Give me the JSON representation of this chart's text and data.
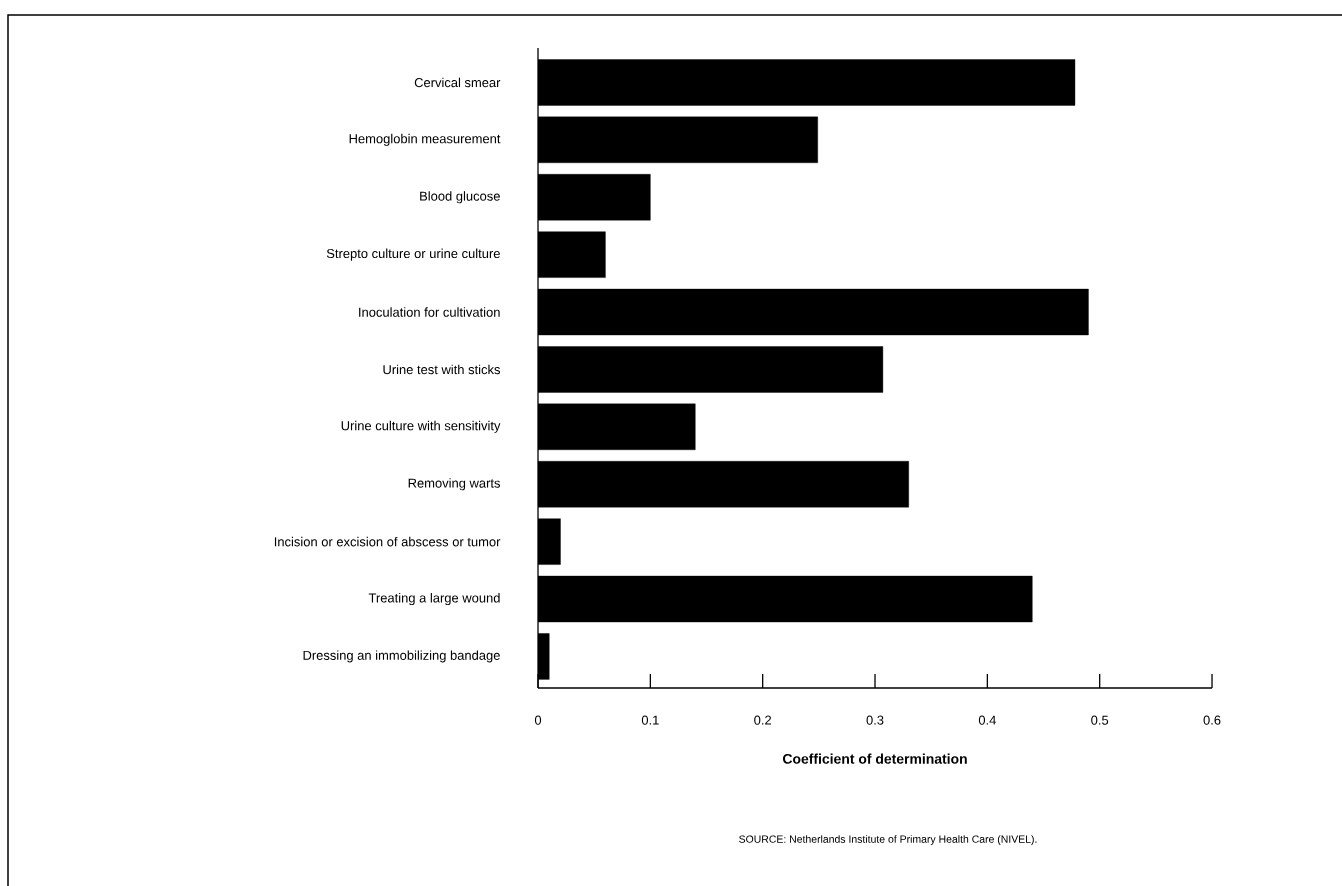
{
  "chart_data": {
    "type": "bar",
    "orientation": "horizontal",
    "xlabel": "Coefficient of determination",
    "categories": [
      "Cervical smear",
      "Hemoglobin measurement",
      "Blood glucose",
      "Strepto culture or urine culture",
      "Inoculation for cultivation",
      "Urine test with sticks",
      "Urine culture with sensitivity",
      "Removing warts",
      "Incision or excision of abscess or tumor",
      "Treating a large wound",
      "Dressing an immobilizing bandage"
    ],
    "values": [
      0.478,
      0.249,
      0.1,
      0.06,
      0.49,
      0.307,
      0.14,
      0.33,
      0.02,
      0.44,
      0.01
    ],
    "color": "#000000",
    "xlim": [
      0,
      0.6
    ],
    "xticks": [
      0,
      0.1,
      0.2,
      0.3,
      0.4,
      0.5,
      0.6
    ],
    "annotations": [
      "SOURCE:  Netherlands Institute of Primary Health Care (NIVEL)."
    ]
  }
}
